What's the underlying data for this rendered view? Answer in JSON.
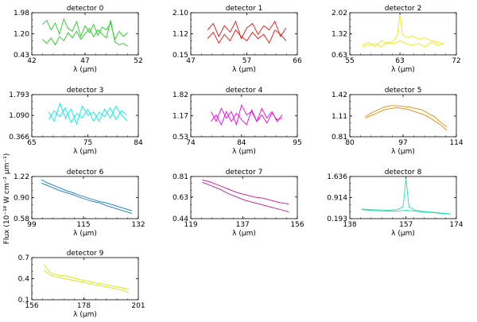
{
  "figure": {
    "ylabel": "Flux (10⁻¹⁸ W cm⁻² µm⁻¹)",
    "xlabel": "λ (µm)"
  },
  "chart_data": [
    {
      "type": "line",
      "title": "detector 0",
      "xlabel": "λ (µm)",
      "xlim": [
        42,
        52
      ],
      "ylim": [
        0.43,
        1.98
      ],
      "xticks": [
        "42",
        "47",
        "52"
      ],
      "yticks": [
        "0.43",
        "1.20",
        "1.98"
      ],
      "color": "#22cc22",
      "series": [
        {
          "x": [
            43.0,
            43.4,
            43.8,
            44.2,
            44.6,
            45.0,
            45.4,
            45.8,
            46.2,
            46.6,
            47.0,
            47.4,
            47.8,
            48.2,
            48.6,
            49.0,
            49.4,
            49.8,
            50.2,
            50.6,
            51.0
          ],
          "values": [
            1.55,
            1.7,
            1.35,
            1.6,
            1.2,
            1.75,
            1.4,
            1.3,
            1.65,
            1.1,
            1.5,
            1.25,
            1.55,
            1.15,
            1.45,
            1.35,
            1.6,
            1.0,
            1.3,
            1.1,
            1.25
          ]
        },
        {
          "x": [
            43.0,
            43.4,
            43.8,
            44.2,
            44.6,
            45.0,
            45.4,
            45.8,
            46.2,
            46.6,
            47.0,
            47.4,
            47.8,
            48.2,
            48.6,
            49.0,
            49.4,
            49.8,
            50.2,
            50.6,
            51.0
          ],
          "values": [
            1.0,
            0.85,
            1.05,
            0.8,
            1.1,
            0.95,
            1.25,
            1.05,
            1.3,
            1.0,
            1.2,
            1.4,
            1.1,
            1.35,
            1.2,
            1.05,
            1.7,
            0.9,
            0.8,
            0.85,
            0.75
          ]
        }
      ]
    },
    {
      "type": "line",
      "title": "detector 1",
      "xlabel": "λ (µm)",
      "xlim": [
        47,
        66
      ],
      "ylim": [
        0.15,
        2.1
      ],
      "xticks": [
        "47",
        "57",
        "66"
      ],
      "yticks": [
        "0.15",
        "1.12",
        "2.10"
      ],
      "color": "#ee1111",
      "series": [
        {
          "x": [
            50.0,
            51.0,
            52.0,
            53.0,
            54.0,
            55.0,
            56.0,
            57.0,
            58.0,
            59.0,
            60.0,
            61.0,
            62.0,
            63.0,
            64.0
          ],
          "values": [
            1.3,
            1.6,
            1.0,
            1.5,
            1.2,
            1.7,
            0.9,
            1.4,
            1.6,
            1.1,
            1.5,
            1.3,
            1.7,
            1.0,
            1.4
          ]
        },
        {
          "x": [
            50.0,
            51.0,
            52.0,
            53.0,
            54.0,
            55.0,
            56.0,
            57.0,
            58.0,
            59.0,
            60.0,
            61.0,
            62.0,
            63.0,
            64.0
          ],
          "values": [
            0.9,
            1.2,
            0.7,
            1.1,
            0.8,
            1.3,
            1.0,
            0.8,
            1.2,
            0.9,
            1.1,
            0.7,
            1.3,
            1.1,
            0.8
          ]
        }
      ]
    },
    {
      "type": "line",
      "title": "detector 2",
      "xlabel": "λ (µm)",
      "xlim": [
        55,
        72
      ],
      "ylim": [
        0.63,
        2.02
      ],
      "xticks": [
        "55",
        "63",
        "72"
      ],
      "yticks": [
        "0.63",
        "1.32",
        "2.02"
      ],
      "color": "#eeee00",
      "series": [
        {
          "x": [
            57.0,
            58.0,
            59.0,
            60.0,
            61.0,
            62.0,
            62.6,
            63.0,
            63.4,
            64.0,
            65.0,
            66.0,
            67.0,
            68.0,
            69.0,
            70.0
          ],
          "values": [
            0.95,
            1.05,
            0.9,
            1.1,
            1.0,
            1.1,
            1.3,
            1.95,
            1.3,
            1.2,
            1.25,
            1.15,
            1.2,
            1.1,
            1.05,
            1.0
          ]
        },
        {
          "x": [
            57.0,
            58.0,
            59.0,
            60.0,
            61.0,
            62.0,
            63.0,
            64.0,
            65.0,
            66.0,
            67.0,
            68.0,
            69.0,
            70.0
          ],
          "values": [
            0.9,
            0.95,
            1.0,
            0.9,
            1.05,
            1.0,
            1.1,
            1.0,
            0.95,
            1.0,
            0.9,
            1.05,
            0.95,
            1.0
          ]
        }
      ]
    },
    {
      "type": "line",
      "title": "detector 3",
      "xlabel": "λ (µm)",
      "xlim": [
        65,
        84
      ],
      "ylim": [
        0.366,
        1.793
      ],
      "xticks": [
        "65",
        "75",
        "84"
      ],
      "yticks": [
        "0.366",
        "1.090",
        "1.793"
      ],
      "color": "#00eeee",
      "series": [
        {
          "x": [
            68.0,
            69.0,
            70.0,
            71.0,
            72.0,
            73.0,
            74.0,
            75.0,
            76.0,
            77.0,
            78.0,
            79.0,
            80.0,
            81.0,
            82.0
          ],
          "values": [
            1.2,
            0.9,
            1.5,
            1.0,
            1.3,
            0.8,
            1.4,
            1.1,
            1.2,
            0.9,
            1.3,
            1.0,
            1.4,
            1.1,
            0.9
          ]
        },
        {
          "x": [
            68.0,
            69.0,
            70.0,
            71.0,
            72.0,
            73.0,
            74.0,
            75.0,
            76.0,
            77.0,
            78.0,
            79.0,
            80.0,
            81.0,
            82.0
          ],
          "values": [
            0.95,
            1.25,
            1.05,
            1.35,
            0.85,
            1.15,
            1.0,
            1.3,
            0.9,
            1.2,
            1.05,
            1.35,
            0.95,
            1.25,
            1.1
          ]
        }
      ]
    },
    {
      "type": "line",
      "title": "detector 4",
      "xlabel": "λ (µm)",
      "xlim": [
        74,
        95
      ],
      "ylim": [
        0.53,
        1.82
      ],
      "xticks": [
        "74",
        "84",
        "95"
      ],
      "yticks": [
        "0.53",
        "1.17",
        "1.82"
      ],
      "color": "#ee00ee",
      "series": [
        {
          "x": [
            78.0,
            79.0,
            80.0,
            81.0,
            82.0,
            83.0,
            84.0,
            85.0,
            86.0,
            87.0,
            88.0,
            89.0,
            90.0,
            91.0,
            92.0
          ],
          "values": [
            1.3,
            1.0,
            1.4,
            1.1,
            1.3,
            0.9,
            1.5,
            1.2,
            1.3,
            1.0,
            1.4,
            1.1,
            1.3,
            1.0,
            1.2
          ]
        },
        {
          "x": [
            78.0,
            79.0,
            80.0,
            81.0,
            82.0,
            83.0,
            84.0,
            85.0,
            86.0,
            87.0,
            88.0,
            89.0,
            90.0,
            91.0,
            92.0
          ],
          "values": [
            1.0,
            1.2,
            0.9,
            1.3,
            1.0,
            1.25,
            1.05,
            0.9,
            1.35,
            1.0,
            1.2,
            0.95,
            1.25,
            1.05,
            1.1
          ]
        }
      ]
    },
    {
      "type": "line",
      "title": "detector 5",
      "xlabel": "λ (µm)",
      "xlim": [
        80,
        114
      ],
      "ylim": [
        0.81,
        1.42
      ],
      "xticks": [
        "80",
        "97",
        "114"
      ],
      "yticks": [
        "0.81",
        "1.11",
        "1.42"
      ],
      "color": "#ee8800",
      "series": [
        {
          "x": [
            85.0,
            87.0,
            89.0,
            91.0,
            93.0,
            95.0,
            97.0,
            99.0,
            101.0,
            103.0,
            105.0,
            107.0,
            109.0,
            111.0
          ],
          "values": [
            1.1,
            1.16,
            1.2,
            1.24,
            1.26,
            1.26,
            1.25,
            1.24,
            1.22,
            1.2,
            1.15,
            1.1,
            1.02,
            0.95
          ]
        },
        {
          "x": [
            85.0,
            87.0,
            89.0,
            91.0,
            93.0,
            95.0,
            97.0,
            99.0,
            101.0,
            103.0,
            105.0,
            107.0,
            109.0,
            111.0
          ],
          "values": [
            1.08,
            1.12,
            1.16,
            1.2,
            1.22,
            1.23,
            1.22,
            1.2,
            1.17,
            1.14,
            1.1,
            1.04,
            0.98,
            0.9
          ]
        }
      ]
    },
    {
      "type": "line",
      "title": "detector 6",
      "xlabel": "λ (µm)",
      "xlim": [
        99,
        132
      ],
      "ylim": [
        0.58,
        1.22
      ],
      "xticks": [
        "99",
        "115",
        "132"
      ],
      "yticks": [
        "0.58",
        "0.90",
        "1.22"
      ],
      "color": "#1177cc",
      "series": [
        {
          "x": [
            102.0,
            104.0,
            106.0,
            108.0,
            110.0,
            112.0,
            114.0,
            116.0,
            118.0,
            120.0,
            122.0,
            124.0,
            126.0,
            128.0,
            130.0
          ],
          "values": [
            1.17,
            1.12,
            1.08,
            1.04,
            1.0,
            0.97,
            0.93,
            0.9,
            0.87,
            0.84,
            0.82,
            0.79,
            0.76,
            0.73,
            0.7
          ]
        },
        {
          "x": [
            102.0,
            104.0,
            106.0,
            108.0,
            110.0,
            112.0,
            114.0,
            116.0,
            118.0,
            120.0,
            122.0,
            124.0,
            126.0,
            128.0,
            130.0
          ],
          "values": [
            1.12,
            1.08,
            1.04,
            1.0,
            0.97,
            0.94,
            0.9,
            0.87,
            0.84,
            0.82,
            0.78,
            0.75,
            0.72,
            0.69,
            0.66
          ]
        }
      ]
    },
    {
      "type": "line",
      "title": "detector 7",
      "xlabel": "λ (µm)",
      "xlim": [
        119,
        156
      ],
      "ylim": [
        0.44,
        0.81
      ],
      "xticks": [
        "119",
        "137",
        "156"
      ],
      "yticks": [
        "0.44",
        "0.63",
        "0.81"
      ],
      "color": "#cc1188",
      "series": [
        {
          "x": [
            123.0,
            126.0,
            129.0,
            132.0,
            135.0,
            138.0,
            141.0,
            144.0,
            147.0,
            150.0,
            153.0
          ],
          "values": [
            0.78,
            0.76,
            0.73,
            0.7,
            0.67,
            0.65,
            0.63,
            0.62,
            0.6,
            0.58,
            0.57
          ]
        },
        {
          "x": [
            123.0,
            126.0,
            129.0,
            132.0,
            135.0,
            138.0,
            141.0,
            144.0,
            147.0,
            150.0,
            153.0
          ],
          "values": [
            0.76,
            0.73,
            0.7,
            0.66,
            0.63,
            0.6,
            0.58,
            0.56,
            0.54,
            0.52,
            0.5
          ]
        }
      ]
    },
    {
      "type": "line",
      "title": "detector 8",
      "xlabel": "λ (µm)",
      "xlim": [
        138,
        174
      ],
      "ylim": [
        0.193,
        1.636
      ],
      "xticks": [
        "138",
        "157",
        "174"
      ],
      "yticks": [
        "0.193",
        "0.914",
        "1.636"
      ],
      "color": "#22ddaa",
      "series": [
        {
          "x": [
            142.0,
            145.0,
            148.0,
            151.0,
            154.0,
            156.0,
            157.0,
            158.0,
            160.0,
            163.0,
            166.0,
            169.0,
            172.0
          ],
          "values": [
            0.52,
            0.5,
            0.49,
            0.48,
            0.5,
            0.6,
            1.55,
            0.6,
            0.48,
            0.44,
            0.41,
            0.38,
            0.36
          ]
        },
        {
          "x": [
            142.0,
            145.0,
            148.0,
            151.0,
            154.0,
            157.0,
            160.0,
            163.0,
            166.0,
            169.0,
            172.0
          ],
          "values": [
            0.5,
            0.48,
            0.46,
            0.45,
            0.45,
            0.48,
            0.45,
            0.42,
            0.4,
            0.37,
            0.35
          ]
        }
      ]
    },
    {
      "type": "line",
      "title": "detector 9",
      "xlabel": "λ (µm)",
      "xlim": [
        156,
        201
      ],
      "ylim": [
        0.1,
        0.7
      ],
      "xticks": [
        "156",
        "178",
        "201"
      ],
      "yticks": [
        "0.1",
        "0.4",
        "0.7"
      ],
      "color": "#ccee00",
      "series": [
        {
          "x": [
            161.0,
            164.0,
            167.0,
            170.0,
            173.0,
            176.0,
            179.0,
            182.0,
            185.0,
            188.0,
            191.0,
            194.0,
            197.0
          ],
          "values": [
            0.6,
            0.48,
            0.45,
            0.44,
            0.42,
            0.39,
            0.37,
            0.35,
            0.33,
            0.31,
            0.29,
            0.27,
            0.25
          ]
        },
        {
          "x": [
            161.0,
            164.0,
            167.0,
            170.0,
            173.0,
            176.0,
            179.0,
            182.0,
            185.0,
            188.0,
            191.0,
            194.0,
            197.0
          ],
          "values": [
            0.52,
            0.45,
            0.42,
            0.4,
            0.38,
            0.36,
            0.34,
            0.32,
            0.3,
            0.28,
            0.26,
            0.24,
            0.2
          ]
        }
      ]
    }
  ]
}
